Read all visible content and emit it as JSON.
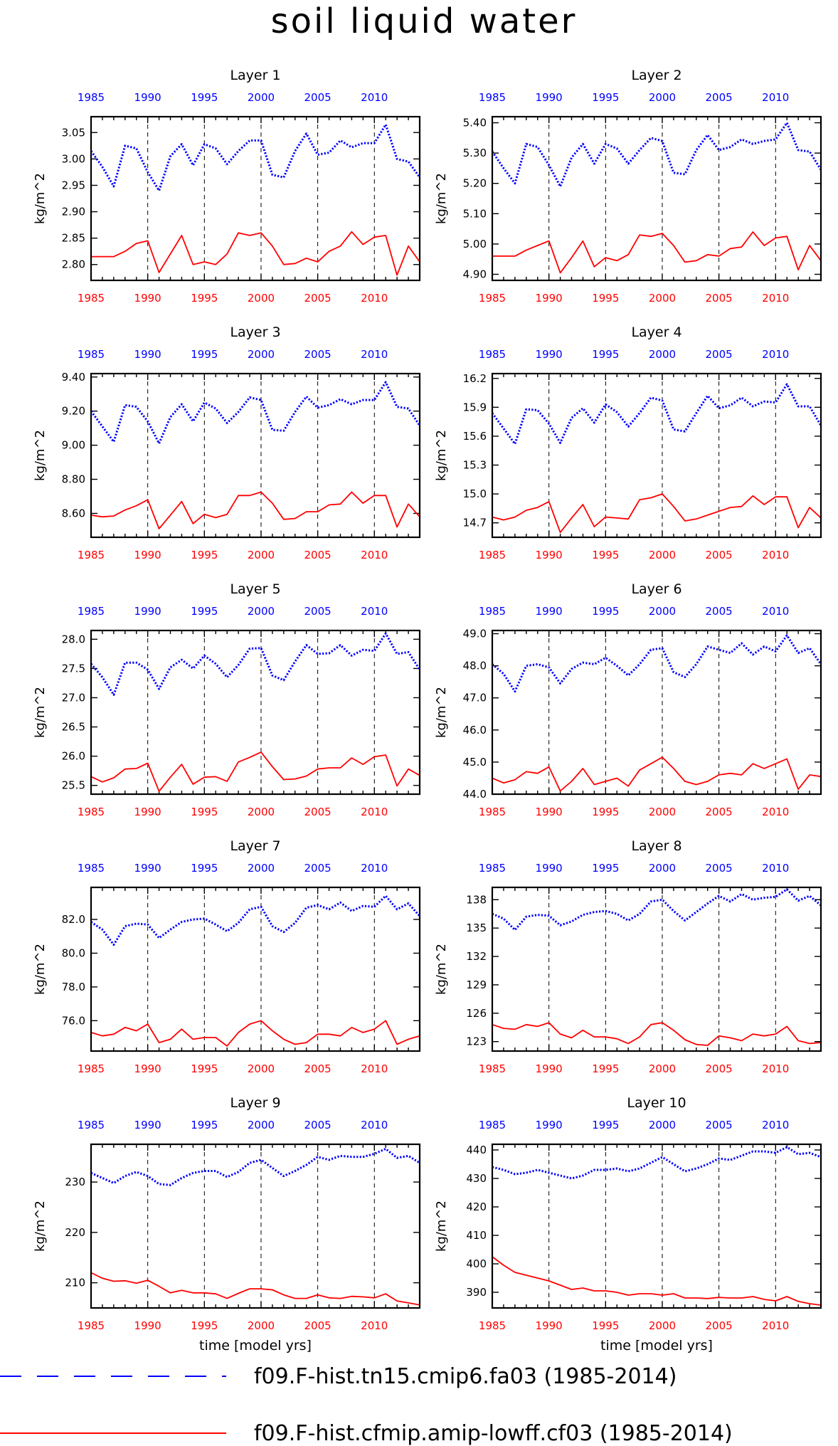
{
  "figure": {
    "title": "soil liquid water",
    "xlabel": "time [model yrs]",
    "ylabel": "kg/m^2",
    "top_axis_color": "#0000ff",
    "bottom_axis_color": "#ff0000",
    "year_ticks": [
      "1985",
      "1990",
      "1995",
      "2000",
      "2005",
      "2010"
    ]
  },
  "legend": {
    "items": [
      {
        "label": "f09.F-hist.tn15.cmip6.fa03 (1985-2014)",
        "color": "#0000ff",
        "style": "dashed"
      },
      {
        "label": "f09.F-hist.cfmip.amip-lowff.cf03 (1985-2014)",
        "color": "#ff0000",
        "style": "solid"
      }
    ]
  },
  "chart_data": [
    {
      "type": "line",
      "title": "Layer 1",
      "ylabel": "kg/m^2",
      "ylim": [
        2.77,
        3.08
      ],
      "yticks": [
        2.8,
        2.85,
        2.9,
        2.95,
        3.0,
        3.05
      ],
      "ytick_decimals": 2,
      "xlim": [
        1985,
        2014
      ],
      "x_blue": [
        1985,
        1986,
        1987,
        1988,
        1989,
        1990,
        1991,
        1992,
        1993,
        1994,
        1995,
        1996,
        1997,
        1998,
        1999,
        2000,
        2001,
        2002,
        2003,
        2004,
        2005,
        2006,
        2007,
        2008,
        2009,
        2010,
        2011,
        2012,
        2013,
        2014
      ],
      "series": [
        {
          "name": "f09.F-hist.tn15.cmip6.fa03",
          "color": "#0000ff",
          "style": "dotted",
          "values": [
            3.015,
            2.985,
            2.948,
            3.025,
            3.02,
            2.975,
            2.94,
            3.005,
            3.028,
            2.988,
            3.028,
            3.02,
            2.99,
            3.015,
            3.035,
            3.035,
            2.97,
            2.965,
            3.015,
            3.048,
            3.008,
            3.012,
            3.035,
            3.022,
            3.03,
            3.03,
            3.065,
            3.0,
            2.995,
            2.965
          ]
        },
        {
          "name": "f09.F-hist.cfmip.amip-lowff.cf03",
          "color": "#ff0000",
          "style": "solid",
          "values": [
            2.815,
            2.815,
            2.815,
            2.825,
            2.84,
            2.845,
            2.785,
            2.82,
            2.855,
            2.8,
            2.805,
            2.8,
            2.82,
            2.86,
            2.855,
            2.86,
            2.835,
            2.8,
            2.802,
            2.812,
            2.805,
            2.825,
            2.835,
            2.862,
            2.838,
            2.852,
            2.855,
            2.78,
            2.835,
            2.805
          ]
        }
      ]
    },
    {
      "type": "line",
      "title": "Layer 2",
      "ylabel": "kg/m^2",
      "ylim": [
        4.88,
        5.42
      ],
      "yticks": [
        4.9,
        5.0,
        5.1,
        5.2,
        5.3,
        5.4
      ],
      "ytick_decimals": 2,
      "xlim": [
        1985,
        2014
      ],
      "series": [
        {
          "name": "f09.F-hist.tn15.cmip6.fa03",
          "color": "#0000ff",
          "style": "dotted",
          "values": [
            5.305,
            5.25,
            5.2,
            5.33,
            5.32,
            5.26,
            5.19,
            5.285,
            5.33,
            5.265,
            5.33,
            5.315,
            5.265,
            5.31,
            5.35,
            5.34,
            5.235,
            5.23,
            5.31,
            5.36,
            5.31,
            5.32,
            5.345,
            5.33,
            5.34,
            5.345,
            5.4,
            5.31,
            5.305,
            5.245
          ]
        },
        {
          "name": "f09.F-hist.cfmip.amip-lowff.cf03",
          "color": "#ff0000",
          "style": "solid",
          "values": [
            4.96,
            4.96,
            4.96,
            4.98,
            4.995,
            5.01,
            4.905,
            4.955,
            5.01,
            4.925,
            4.955,
            4.945,
            4.965,
            5.03,
            5.025,
            5.035,
            4.995,
            4.94,
            4.945,
            4.965,
            4.96,
            4.985,
            4.99,
            5.04,
            4.995,
            5.02,
            5.025,
            4.915,
            4.995,
            4.945
          ]
        }
      ]
    },
    {
      "type": "line",
      "title": "Layer 3",
      "ylabel": "kg/m^2",
      "ylim": [
        8.46,
        9.42
      ],
      "yticks": [
        8.6,
        8.8,
        9.0,
        9.2,
        9.4
      ],
      "ytick_decimals": 2,
      "xlim": [
        1985,
        2014
      ],
      "series": [
        {
          "name": "f09.F-hist.tn15.cmip6.fa03",
          "color": "#0000ff",
          "style": "dotted",
          "values": [
            9.2,
            9.11,
            9.02,
            9.235,
            9.225,
            9.14,
            9.01,
            9.165,
            9.24,
            9.14,
            9.25,
            9.215,
            9.13,
            9.195,
            9.28,
            9.265,
            9.09,
            9.085,
            9.195,
            9.285,
            9.22,
            9.235,
            9.27,
            9.24,
            9.265,
            9.265,
            9.37,
            9.225,
            9.215,
            9.115
          ]
        },
        {
          "name": "f09.F-hist.cfmip.amip-lowff.cf03",
          "color": "#ff0000",
          "style": "solid",
          "values": [
            8.59,
            8.58,
            8.585,
            8.62,
            8.645,
            8.68,
            8.51,
            8.59,
            8.67,
            8.54,
            8.595,
            8.575,
            8.595,
            8.705,
            8.705,
            8.725,
            8.66,
            8.565,
            8.57,
            8.61,
            8.61,
            8.65,
            8.655,
            8.725,
            8.66,
            8.705,
            8.705,
            8.52,
            8.655,
            8.58
          ]
        }
      ]
    },
    {
      "type": "line",
      "title": "Layer 4",
      "ylabel": "kg/m^2",
      "ylim": [
        14.55,
        16.25
      ],
      "yticks": [
        14.7,
        15.0,
        15.3,
        15.6,
        15.9,
        16.2
      ],
      "ytick_decimals": 1,
      "xlim": [
        1985,
        2014
      ],
      "series": [
        {
          "name": "f09.F-hist.tn15.cmip6.fa03",
          "color": "#0000ff",
          "style": "dotted",
          "values": [
            15.84,
            15.68,
            15.52,
            15.88,
            15.87,
            15.73,
            15.53,
            15.79,
            15.89,
            15.74,
            15.93,
            15.85,
            15.7,
            15.84,
            16.0,
            15.97,
            15.67,
            15.65,
            15.84,
            16.02,
            15.89,
            15.92,
            16.0,
            15.91,
            15.96,
            15.95,
            16.14,
            15.91,
            15.91,
            15.71
          ]
        },
        {
          "name": "f09.F-hist.cfmip.amip-lowff.cf03",
          "color": "#ff0000",
          "style": "solid",
          "values": [
            14.76,
            14.73,
            14.76,
            14.83,
            14.86,
            14.92,
            14.6,
            14.75,
            14.89,
            14.66,
            14.76,
            14.75,
            14.74,
            14.94,
            14.96,
            15.0,
            14.87,
            14.72,
            14.74,
            14.78,
            14.82,
            14.86,
            14.87,
            14.98,
            14.89,
            14.97,
            14.97,
            14.65,
            14.86,
            14.75
          ]
        }
      ]
    },
    {
      "type": "line",
      "title": "Layer 5",
      "ylabel": "kg/m^2",
      "ylim": [
        25.35,
        28.15
      ],
      "yticks": [
        25.5,
        26.0,
        26.5,
        27.0,
        27.5,
        28.0
      ],
      "ytick_decimals": 1,
      "xlim": [
        1985,
        2014
      ],
      "series": [
        {
          "name": "f09.F-hist.tn15.cmip6.fa03",
          "color": "#0000ff",
          "style": "dotted",
          "values": [
            27.58,
            27.35,
            27.05,
            27.6,
            27.6,
            27.48,
            27.15,
            27.52,
            27.65,
            27.5,
            27.72,
            27.58,
            27.35,
            27.56,
            27.84,
            27.85,
            27.38,
            27.3,
            27.62,
            27.9,
            27.75,
            27.76,
            27.9,
            27.72,
            27.82,
            27.8,
            28.1,
            27.75,
            27.78,
            27.48
          ]
        },
        {
          "name": "f09.F-hist.cfmip.amip-lowff.cf03",
          "color": "#ff0000",
          "style": "solid",
          "values": [
            25.65,
            25.56,
            25.63,
            25.78,
            25.79,
            25.88,
            25.4,
            25.64,
            25.86,
            25.52,
            25.64,
            25.65,
            25.57,
            25.9,
            25.98,
            26.07,
            25.82,
            25.6,
            25.61,
            25.66,
            25.78,
            25.8,
            25.8,
            25.97,
            25.86,
            25.99,
            26.02,
            25.49,
            25.78,
            25.67
          ]
        }
      ]
    },
    {
      "type": "line",
      "title": "Layer 6",
      "ylabel": "kg/m^2",
      "ylim": [
        44.0,
        49.1
      ],
      "yticks": [
        44.0,
        45.0,
        46.0,
        47.0,
        48.0,
        49.0
      ],
      "ytick_decimals": 1,
      "xlim": [
        1985,
        2014
      ],
      "series": [
        {
          "name": "f09.F-hist.tn15.cmip6.fa03",
          "color": "#0000ff",
          "style": "dotted",
          "values": [
            48.05,
            47.75,
            47.2,
            48.0,
            48.05,
            47.95,
            47.45,
            47.9,
            48.1,
            48.05,
            48.25,
            48.0,
            47.7,
            48.05,
            48.5,
            48.55,
            47.8,
            47.65,
            48.05,
            48.6,
            48.5,
            48.4,
            48.7,
            48.35,
            48.6,
            48.45,
            48.95,
            48.4,
            48.55,
            48.05
          ]
        },
        {
          "name": "f09.F-hist.cfmip.amip-lowff.cf03",
          "color": "#ff0000",
          "style": "solid",
          "values": [
            44.5,
            44.35,
            44.45,
            44.7,
            44.65,
            44.85,
            44.1,
            44.4,
            44.8,
            44.3,
            44.4,
            44.5,
            44.25,
            44.75,
            44.95,
            45.15,
            44.8,
            44.4,
            44.3,
            44.4,
            44.6,
            44.65,
            44.6,
            44.95,
            44.8,
            44.95,
            45.1,
            44.15,
            44.6,
            44.55
          ]
        }
      ]
    },
    {
      "type": "line",
      "title": "Layer 7",
      "ylabel": "kg/m^2",
      "ylim": [
        74.2,
        83.9
      ],
      "yticks": [
        76.0,
        78.0,
        80.0,
        82.0
      ],
      "ytick_decimals": 1,
      "xlim": [
        1985,
        2014
      ],
      "series": [
        {
          "name": "f09.F-hist.tn15.cmip6.fa03",
          "color": "#0000ff",
          "style": "dotted",
          "values": [
            81.85,
            81.4,
            80.5,
            81.6,
            81.75,
            81.7,
            80.9,
            81.4,
            81.85,
            82.0,
            82.05,
            81.7,
            81.3,
            81.8,
            82.6,
            82.75,
            81.6,
            81.25,
            81.8,
            82.7,
            82.85,
            82.6,
            83.0,
            82.5,
            82.8,
            82.75,
            83.4,
            82.6,
            82.95,
            82.2
          ]
        },
        {
          "name": "f09.F-hist.cfmip.amip-lowff.cf03",
          "color": "#ff0000",
          "style": "solid",
          "values": [
            75.3,
            75.1,
            75.2,
            75.6,
            75.4,
            75.8,
            74.7,
            74.9,
            75.5,
            74.9,
            75.0,
            75.0,
            74.5,
            75.3,
            75.8,
            76.0,
            75.4,
            74.9,
            74.6,
            74.7,
            75.2,
            75.2,
            75.1,
            75.6,
            75.3,
            75.5,
            76.0,
            74.6,
            74.9,
            75.1
          ]
        }
      ]
    },
    {
      "type": "line",
      "title": "Layer 8",
      "ylabel": "kg/m^2",
      "ylim": [
        122.0,
        139.3
      ],
      "yticks": [
        123,
        126,
        129,
        132,
        135,
        138
      ],
      "ytick_decimals": 0,
      "xlim": [
        1985,
        2014
      ],
      "series": [
        {
          "name": "f09.F-hist.tn15.cmip6.fa03",
          "color": "#0000ff",
          "style": "dotted",
          "values": [
            136.5,
            136.0,
            134.8,
            136.2,
            136.4,
            136.3,
            135.3,
            135.7,
            136.4,
            136.7,
            136.8,
            136.5,
            135.8,
            136.5,
            137.8,
            138.0,
            136.8,
            135.8,
            136.7,
            137.6,
            138.4,
            137.8,
            138.6,
            138.0,
            138.2,
            138.3,
            139.1,
            137.9,
            138.4,
            137.4
          ]
        },
        {
          "name": "f09.F-hist.cfmip.amip-lowff.cf03",
          "color": "#ff0000",
          "style": "solid",
          "values": [
            124.8,
            124.4,
            124.3,
            124.8,
            124.6,
            125.0,
            123.8,
            123.4,
            124.2,
            123.5,
            123.5,
            123.3,
            122.8,
            123.5,
            124.8,
            125.0,
            124.2,
            123.2,
            122.7,
            122.6,
            123.6,
            123.4,
            123.1,
            123.8,
            123.6,
            123.8,
            124.6,
            123.1,
            122.8,
            122.9
          ]
        }
      ]
    },
    {
      "type": "line",
      "title": "Layer 9",
      "ylabel": "kg/m^2",
      "ylim": [
        205.0,
        237.5
      ],
      "yticks": [
        210,
        220,
        230
      ],
      "ytick_decimals": 0,
      "xlim": [
        1985,
        2014
      ],
      "series": [
        {
          "name": "f09.F-hist.tn15.cmip6.fa03",
          "color": "#0000ff",
          "style": "dotted",
          "values": [
            231.8,
            230.8,
            229.8,
            231.2,
            232.0,
            231.2,
            229.6,
            229.4,
            230.8,
            231.8,
            232.2,
            232.2,
            231.0,
            232.0,
            233.8,
            234.4,
            232.8,
            231.2,
            232.2,
            233.4,
            235.0,
            234.4,
            235.2,
            235.0,
            235.0,
            235.6,
            236.6,
            234.8,
            235.2,
            233.8
          ]
        },
        {
          "name": "f09.F-hist.cfmip.amip-lowff.cf03",
          "color": "#ff0000",
          "style": "solid",
          "values": [
            212.0,
            210.9,
            210.3,
            210.4,
            209.9,
            210.5,
            209.3,
            208.0,
            208.5,
            208.0,
            208.0,
            207.8,
            206.9,
            207.9,
            208.8,
            208.8,
            208.6,
            207.6,
            206.9,
            206.9,
            207.6,
            207.0,
            206.9,
            207.3,
            207.2,
            207.0,
            207.8,
            206.4,
            206.0,
            205.6
          ]
        }
      ]
    },
    {
      "type": "line",
      "title": "Layer 10",
      "ylabel": "kg/m^2",
      "ylim": [
        384.5,
        442.0
      ],
      "yticks": [
        390,
        400,
        410,
        420,
        430,
        440
      ],
      "ytick_decimals": 0,
      "xlim": [
        1985,
        2014
      ],
      "series": [
        {
          "name": "f09.F-hist.tn15.cmip6.fa03",
          "color": "#0000ff",
          "style": "dotted",
          "values": [
            434.0,
            433.0,
            431.5,
            432.0,
            433.0,
            432.0,
            431.0,
            430.0,
            431.0,
            433.0,
            433.0,
            433.5,
            432.5,
            433.5,
            435.5,
            437.5,
            435.0,
            432.5,
            433.5,
            435.0,
            437.0,
            436.5,
            438.0,
            439.5,
            439.5,
            439.0,
            441.0,
            438.5,
            439.0,
            437.5
          ]
        },
        {
          "name": "f09.F-hist.cfmip.amip-lowff.cf03",
          "color": "#ff0000",
          "style": "solid",
          "values": [
            402.5,
            399.5,
            397.0,
            396.0,
            395.0,
            394.0,
            392.5,
            391.0,
            391.5,
            390.5,
            390.5,
            390.0,
            389.0,
            389.5,
            389.5,
            389.0,
            389.5,
            388.0,
            388.0,
            387.8,
            388.2,
            388.0,
            388.0,
            388.5,
            387.5,
            387.0,
            388.5,
            386.8,
            386.0,
            385.5
          ]
        }
      ]
    }
  ]
}
